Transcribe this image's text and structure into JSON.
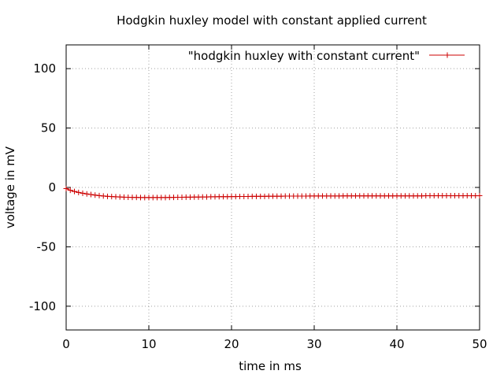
{
  "chart_data": {
    "type": "line",
    "title": "Hodgkin huxley model with constant applied current",
    "xlabel": "time in ms",
    "ylabel": "voltage in mV",
    "xlim": [
      0,
      50
    ],
    "ylim": [
      -120,
      120
    ],
    "x_ticks": [
      0,
      10,
      20,
      30,
      40,
      50
    ],
    "y_ticks": [
      -100,
      -50,
      0,
      50,
      100
    ],
    "grid": true,
    "legend_position": "top-right",
    "series": [
      {
        "name": "\"hodgkin huxley with constant current\"",
        "color": "#cc0000",
        "marker": "plus",
        "x": [
          0,
          0.5,
          1,
          1.5,
          2,
          2.5,
          3,
          3.5,
          4,
          4.5,
          5,
          5.5,
          6,
          6.5,
          7,
          7.5,
          8,
          8.5,
          9,
          9.5,
          10,
          10.5,
          11,
          11.5,
          12,
          12.5,
          13,
          13.5,
          14,
          14.5,
          15,
          15.5,
          16,
          16.5,
          17,
          17.5,
          18,
          18.5,
          19,
          19.5,
          20,
          20.5,
          21,
          21.5,
          22,
          22.5,
          23,
          23.5,
          24,
          24.5,
          25,
          25.5,
          26,
          26.5,
          27,
          27.5,
          28,
          28.5,
          29,
          29.5,
          30,
          30.5,
          31,
          31.5,
          32,
          32.5,
          33,
          33.5,
          34,
          34.5,
          35,
          35.5,
          36,
          36.5,
          37,
          37.5,
          38,
          38.5,
          39,
          39.5,
          40,
          40.5,
          41,
          41.5,
          42,
          42.5,
          43,
          43.5,
          44,
          44.5,
          45,
          45.5,
          46,
          46.5,
          47,
          47.5,
          48,
          48.5,
          49,
          49.5,
          50
        ],
        "y": [
          -1.0,
          -2.4,
          -3.4,
          -4.2,
          -4.9,
          -5.5,
          -6.0,
          -6.5,
          -6.9,
          -7.2,
          -7.5,
          -7.7,
          -7.9,
          -8.0,
          -8.2,
          -8.3,
          -8.4,
          -8.4,
          -8.5,
          -8.5,
          -8.5,
          -8.5,
          -8.5,
          -8.5,
          -8.5,
          -8.4,
          -8.4,
          -8.3,
          -8.3,
          -8.2,
          -8.2,
          -8.1,
          -8.1,
          -8.0,
          -8.0,
          -7.9,
          -7.9,
          -7.8,
          -7.8,
          -7.8,
          -7.7,
          -7.7,
          -7.6,
          -7.6,
          -7.6,
          -7.5,
          -7.5,
          -7.5,
          -7.5,
          -7.4,
          -7.4,
          -7.4,
          -7.4,
          -7.3,
          -7.3,
          -7.3,
          -7.3,
          -7.3,
          -7.3,
          -7.2,
          -7.2,
          -7.2,
          -7.2,
          -7.2,
          -7.2,
          -7.2,
          -7.2,
          -7.1,
          -7.1,
          -7.1,
          -7.1,
          -7.1,
          -7.1,
          -7.1,
          -7.1,
          -7.1,
          -7.1,
          -7.1,
          -7.1,
          -7.1,
          -7.1,
          -7.1,
          -7.1,
          -7.1,
          -7.1,
          -7.1,
          -7.1,
          -7.0,
          -7.0,
          -7.0,
          -7.0,
          -7.0,
          -7.0,
          -7.0,
          -7.0,
          -7.0,
          -7.0,
          -7.0,
          -7.0,
          -7.0,
          -7.0
        ]
      }
    ]
  }
}
